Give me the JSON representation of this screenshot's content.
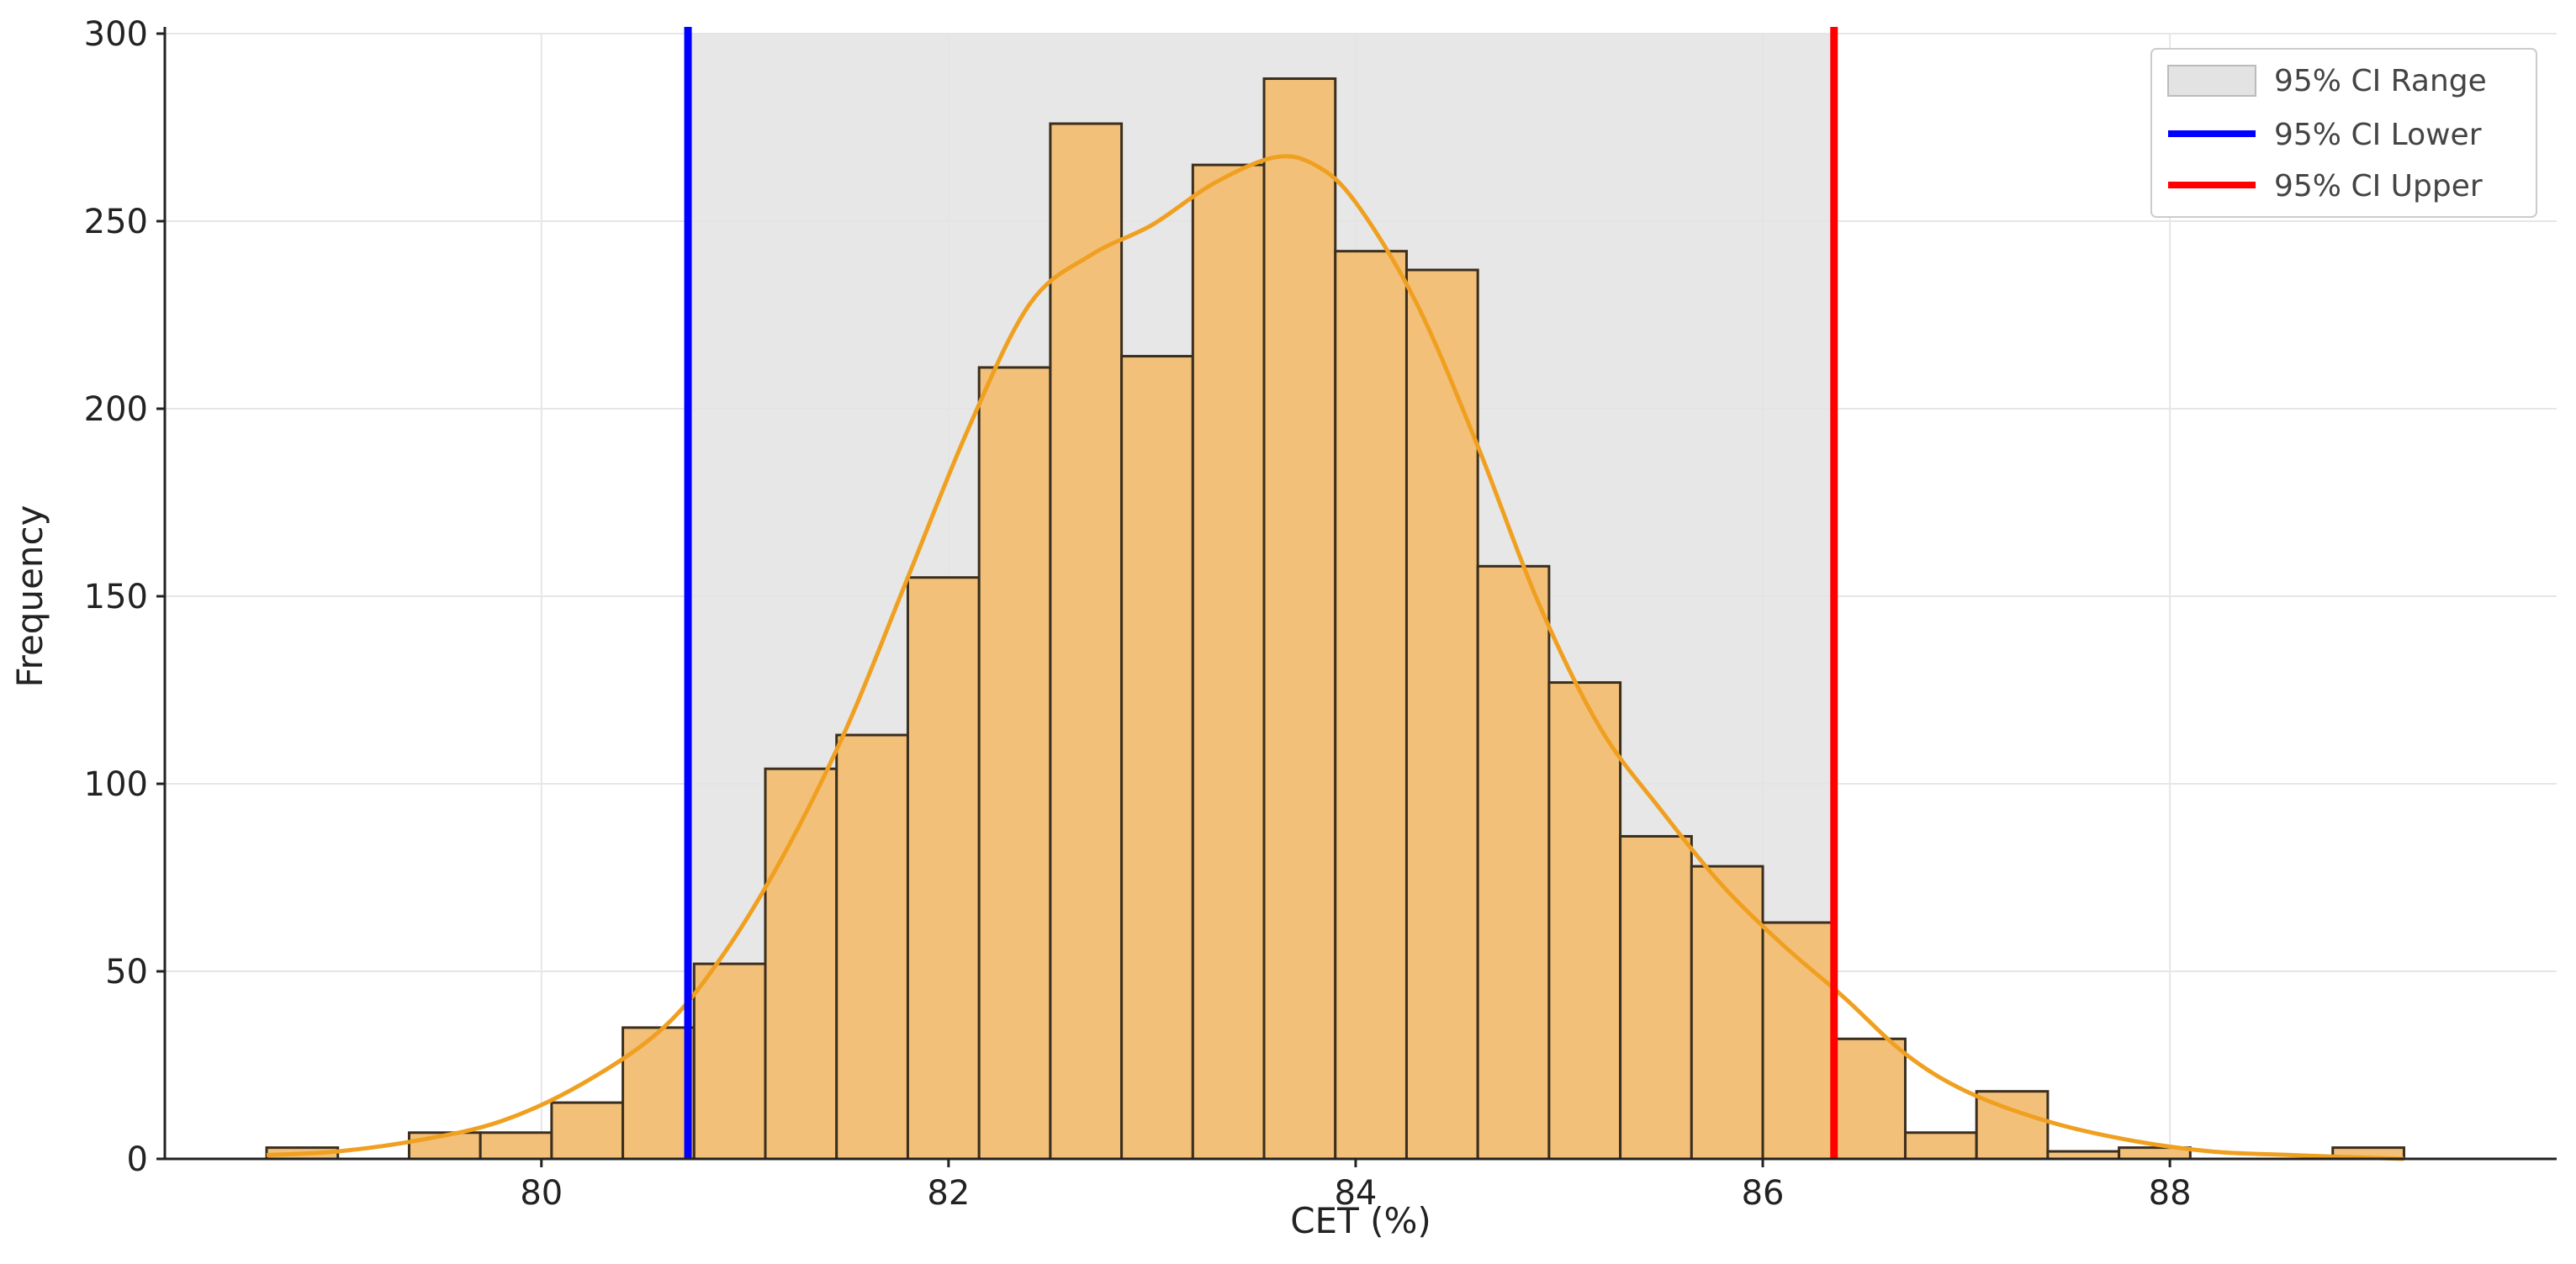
{
  "chart_data": {
    "type": "bar",
    "title": "",
    "xlabel": "CET (%)",
    "ylabel": "Frequency",
    "xlim": [
      78.15,
      89.9
    ],
    "ylim": [
      0,
      300
    ],
    "x_ticks": [
      80,
      82,
      84,
      86,
      88
    ],
    "y_ticks": [
      0,
      50,
      100,
      150,
      200,
      250,
      300
    ],
    "grid": true,
    "legend_position": "top-right",
    "histogram": {
      "name": "",
      "bin_edges": [
        78.65,
        79.0,
        79.35,
        79.7,
        80.05,
        80.4,
        80.75,
        81.1,
        81.45,
        81.8,
        82.15,
        82.5,
        82.85,
        83.2,
        83.55,
        83.9,
        84.25,
        84.6,
        84.95,
        85.3,
        85.65,
        86.0,
        86.35,
        86.7,
        87.05,
        87.4,
        87.75,
        88.1,
        88.45,
        88.8,
        89.15
      ],
      "counts": [
        3,
        0,
        7,
        7,
        15,
        35,
        52,
        104,
        113,
        155,
        211,
        276,
        214,
        265,
        288,
        242,
        237,
        158,
        127,
        86,
        78,
        63,
        32,
        7,
        18,
        2,
        3,
        0,
        0,
        3
      ]
    },
    "kde": {
      "name": "",
      "x": [
        78.65,
        79.0,
        79.4,
        79.8,
        80.2,
        80.6,
        80.9,
        81.2,
        81.5,
        81.8,
        82.1,
        82.4,
        82.7,
        83.0,
        83.3,
        83.6,
        83.8,
        84.0,
        84.3,
        84.6,
        84.9,
        85.2,
        85.5,
        85.8,
        86.1,
        86.4,
        86.7,
        87.0,
        87.4,
        87.8,
        88.2,
        88.6,
        89.15
      ],
      "y": [
        1,
        2,
        5,
        10,
        20,
        35,
        55,
        82,
        115,
        155,
        195,
        228,
        241,
        249,
        260,
        267,
        265,
        255,
        228,
        190,
        148,
        115,
        93,
        73,
        57,
        43,
        28,
        18,
        10,
        5,
        2,
        1,
        0
      ]
    },
    "ci_range": {
      "name": "95% CI Range",
      "lower": 80.72,
      "upper": 86.35,
      "color": "#e3e3e3"
    },
    "ci_lower": {
      "name": "95% CI Lower",
      "value": 80.72,
      "color": "#0000ff"
    },
    "ci_upper": {
      "name": "95% CI Upper",
      "value": 86.35,
      "color": "#ff0000"
    },
    "colors": {
      "bar_fill": "#f3c07a",
      "bar_edge": "#3a2e1e",
      "kde_line": "#f0a020"
    }
  }
}
